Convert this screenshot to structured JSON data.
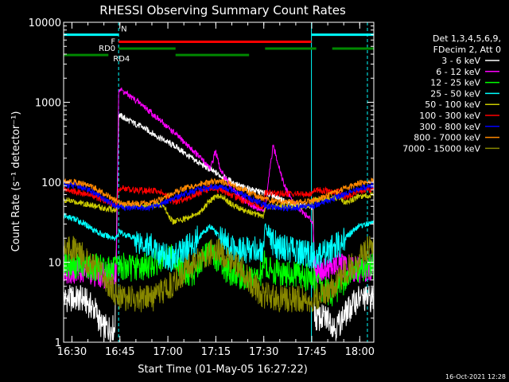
{
  "chart_data": {
    "type": "line",
    "title": "RHESSI Observing Summary Count Rates",
    "xlabel": "Start Time (01-May-05 16:27:22)",
    "ylabel": "Count Rate (s⁻¹ detector⁻¹)",
    "y_log": true,
    "ylim": [
      1,
      10000
    ],
    "xlim_minutes_after_start": [
      0,
      97
    ],
    "x_ticks": [
      {
        "label": "16:30",
        "t": 2.6
      },
      {
        "label": "16:45",
        "t": 17.6
      },
      {
        "label": "17:00",
        "t": 32.6
      },
      {
        "label": "17:15",
        "t": 47.6
      },
      {
        "label": "17:30",
        "t": 62.6
      },
      {
        "label": "17:45",
        "t": 77.6
      },
      {
        "label": "18:00",
        "t": 92.6
      }
    ],
    "y_ticks": [
      {
        "label": "1",
        "v": 1
      },
      {
        "label": "10",
        "v": 10
      },
      {
        "label": "100",
        "v": 100
      },
      {
        "label": "1000",
        "v": 1000
      },
      {
        "label": "10000",
        "v": 10000
      }
    ],
    "legend_header": [
      "Det 1,3,4,5,6,9,",
      "FDecim 2, Att 0"
    ],
    "legend_position": "right",
    "timestamp": "16-Oct-2021 12:28",
    "series": [
      {
        "name": "3 - 6 keV",
        "color": "#ffffff",
        "points": [
          [
            0,
            3.5
          ],
          [
            6,
            3.5
          ],
          [
            10,
            2.5
          ],
          [
            12,
            1.5
          ],
          [
            16,
            1.5
          ],
          [
            17.2,
            700
          ],
          [
            20,
            600
          ],
          [
            25,
            480
          ],
          [
            30,
            360
          ],
          [
            35,
            280
          ],
          [
            40,
            200
          ],
          [
            45,
            150
          ],
          [
            50,
            115
          ],
          [
            55,
            90
          ],
          [
            60,
            78
          ],
          [
            65,
            70
          ],
          [
            70,
            55
          ],
          [
            75,
            50
          ],
          [
            78,
            48
          ],
          [
            78.5,
            2
          ],
          [
            83,
            2
          ],
          [
            85,
            1.5
          ],
          [
            89,
            2.5
          ],
          [
            92,
            3.5
          ],
          [
            97,
            3.5
          ]
        ]
      },
      {
        "name": "6 - 12 keV",
        "color": "#ff00ff",
        "points": [
          [
            0,
            8
          ],
          [
            6,
            8
          ],
          [
            12,
            7
          ],
          [
            16.5,
            7
          ],
          [
            17.2,
            1500
          ],
          [
            20,
            1250
          ],
          [
            25,
            900
          ],
          [
            30,
            600
          ],
          [
            35,
            400
          ],
          [
            40,
            260
          ],
          [
            44,
            180
          ],
          [
            46,
            150
          ],
          [
            47.5,
            250
          ],
          [
            49,
            140
          ],
          [
            52,
            90
          ],
          [
            55,
            65
          ],
          [
            60,
            48
          ],
          [
            63,
            45
          ],
          [
            64,
            100
          ],
          [
            65.5,
            280
          ],
          [
            67,
            180
          ],
          [
            69,
            90
          ],
          [
            72,
            55
          ],
          [
            76,
            38
          ],
          [
            78,
            32
          ],
          [
            78.5,
            8
          ],
          [
            85,
            9
          ],
          [
            92,
            8
          ],
          [
            97,
            9
          ]
        ]
      },
      {
        "name": "12 - 25 keV",
        "color": "#00ff00",
        "points": [
          [
            0,
            9.5
          ],
          [
            6,
            9
          ],
          [
            12,
            8.5
          ],
          [
            16.5,
            8
          ],
          [
            17.2,
            9
          ],
          [
            22,
            8.5
          ],
          [
            26,
            9
          ],
          [
            30,
            10
          ],
          [
            34,
            12
          ],
          [
            37,
            8
          ],
          [
            40,
            7
          ],
          [
            43,
            10
          ],
          [
            45,
            14
          ],
          [
            47,
            12
          ],
          [
            50,
            8
          ],
          [
            54,
            7
          ],
          [
            58,
            6
          ],
          [
            62,
            7
          ],
          [
            62.5,
            12
          ],
          [
            63,
            9
          ],
          [
            65,
            8
          ],
          [
            69,
            7
          ],
          [
            74,
            7
          ],
          [
            78,
            6
          ],
          [
            80,
            5
          ],
          [
            84,
            4
          ],
          [
            88,
            6
          ],
          [
            92,
            8
          ],
          [
            97,
            9
          ]
        ]
      },
      {
        "name": "25 - 50 keV",
        "color": "#00ffff",
        "points": [
          [
            0,
            38
          ],
          [
            4,
            34
          ],
          [
            8,
            28
          ],
          [
            12,
            22
          ],
          [
            16.5,
            20
          ],
          [
            17.2,
            24
          ],
          [
            22,
            20
          ],
          [
            26,
            17
          ],
          [
            30,
            13
          ],
          [
            34,
            11
          ],
          [
            37,
            14
          ],
          [
            40,
            16
          ],
          [
            43,
            22
          ],
          [
            46,
            28
          ],
          [
            49,
            20
          ],
          [
            52,
            16
          ],
          [
            56,
            14
          ],
          [
            60,
            15
          ],
          [
            62.5,
            12
          ],
          [
            63,
            30
          ],
          [
            64,
            20
          ],
          [
            67,
            16
          ],
          [
            72,
            14
          ],
          [
            78,
            12
          ],
          [
            81,
            13
          ],
          [
            85,
            15
          ],
          [
            88,
            20
          ],
          [
            92,
            28
          ],
          [
            97,
            32
          ]
        ]
      },
      {
        "name": "50 - 100 keV",
        "color": "#cccc00",
        "points": [
          [
            0,
            60
          ],
          [
            6,
            55
          ],
          [
            12,
            48
          ],
          [
            16.5,
            45
          ],
          [
            17.2,
            52
          ],
          [
            22,
            52
          ],
          [
            26,
            52
          ],
          [
            30,
            52
          ],
          [
            32,
            45
          ],
          [
            34,
            32
          ],
          [
            38,
            35
          ],
          [
            42,
            40
          ],
          [
            46,
            60
          ],
          [
            49,
            70
          ],
          [
            52,
            55
          ],
          [
            56,
            45
          ],
          [
            60,
            40
          ],
          [
            62.5,
            38
          ],
          [
            63,
            50
          ],
          [
            67,
            50
          ],
          [
            72,
            50
          ],
          [
            77,
            50
          ],
          [
            78.5,
            60
          ],
          [
            82,
            62
          ],
          [
            86,
            65
          ],
          [
            88,
            55
          ],
          [
            90,
            60
          ],
          [
            92,
            66
          ],
          [
            97,
            70
          ]
        ]
      },
      {
        "name": "100 - 300 keV",
        "color": "#ff0000",
        "points": [
          [
            0,
            82
          ],
          [
            4,
            76
          ],
          [
            8,
            70
          ],
          [
            12,
            60
          ],
          [
            16.5,
            50
          ],
          [
            17.2,
            85
          ],
          [
            22,
            80
          ],
          [
            26,
            78
          ],
          [
            30,
            78
          ],
          [
            32,
            68
          ],
          [
            34,
            56
          ],
          [
            38,
            62
          ],
          [
            42,
            72
          ],
          [
            46,
            84
          ],
          [
            49,
            80
          ],
          [
            52,
            70
          ],
          [
            56,
            60
          ],
          [
            60,
            52
          ],
          [
            62.5,
            50
          ],
          [
            63,
            74
          ],
          [
            67,
            72
          ],
          [
            72,
            72
          ],
          [
            77,
            70
          ],
          [
            78.5,
            80
          ],
          [
            82,
            78
          ],
          [
            86,
            76
          ],
          [
            88,
            64
          ],
          [
            90,
            70
          ],
          [
            92,
            78
          ],
          [
            97,
            82
          ]
        ]
      },
      {
        "name": "300 - 800 keV",
        "color": "#0000ff",
        "points": [
          [
            0,
            95
          ],
          [
            4,
            90
          ],
          [
            8,
            80
          ],
          [
            12,
            65
          ],
          [
            16.5,
            50
          ],
          [
            20,
            48
          ],
          [
            26,
            48
          ],
          [
            30,
            52
          ],
          [
            34,
            62
          ],
          [
            38,
            72
          ],
          [
            42,
            80
          ],
          [
            46,
            86
          ],
          [
            49,
            88
          ],
          [
            52,
            82
          ],
          [
            56,
            70
          ],
          [
            60,
            58
          ],
          [
            64,
            50
          ],
          [
            68,
            48
          ],
          [
            72,
            48
          ],
          [
            77,
            50
          ],
          [
            80,
            54
          ],
          [
            84,
            62
          ],
          [
            88,
            72
          ],
          [
            92,
            84
          ],
          [
            97,
            92
          ]
        ]
      },
      {
        "name": "800 - 7000 keV",
        "color": "#ff8800",
        "points": [
          [
            0,
            105
          ],
          [
            4,
            100
          ],
          [
            8,
            92
          ],
          [
            12,
            75
          ],
          [
            16.5,
            58
          ],
          [
            20,
            54
          ],
          [
            26,
            54
          ],
          [
            30,
            60
          ],
          [
            34,
            72
          ],
          [
            38,
            84
          ],
          [
            42,
            92
          ],
          [
            46,
            100
          ],
          [
            49,
            102
          ],
          [
            52,
            95
          ],
          [
            56,
            82
          ],
          [
            60,
            68
          ],
          [
            64,
            60
          ],
          [
            68,
            56
          ],
          [
            72,
            56
          ],
          [
            77,
            58
          ],
          [
            80,
            62
          ],
          [
            84,
            72
          ],
          [
            88,
            84
          ],
          [
            92,
            96
          ],
          [
            97,
            105
          ]
        ]
      },
      {
        "name": "7000 - 15000 keV",
        "color": "#888800",
        "points": [
          [
            0,
            16
          ],
          [
            4,
            14
          ],
          [
            8,
            10
          ],
          [
            12,
            7
          ],
          [
            16.5,
            4
          ],
          [
            20,
            3.5
          ],
          [
            24,
            3.5
          ],
          [
            28,
            3.5
          ],
          [
            30,
            4
          ],
          [
            33,
            5
          ],
          [
            37,
            7
          ],
          [
            41,
            10
          ],
          [
            45,
            13
          ],
          [
            48,
            14
          ],
          [
            51,
            12
          ],
          [
            55,
            9
          ],
          [
            58,
            6
          ],
          [
            62,
            4
          ],
          [
            66,
            3.5
          ],
          [
            70,
            3.5
          ],
          [
            75,
            3.5
          ],
          [
            78,
            3.5
          ],
          [
            82,
            4
          ],
          [
            86,
            6
          ],
          [
            90,
            9
          ],
          [
            94,
            13
          ],
          [
            97,
            16
          ]
        ]
      }
    ],
    "state_bars": [
      {
        "label": "N",
        "color": "#00ffff",
        "level": 7000,
        "segments": [
          [
            0,
            17.2
          ],
          [
            77.5,
            97
          ]
        ]
      },
      {
        "label": "F",
        "color": "#ff0000",
        "level": 5700,
        "segments": [
          [
            17.2,
            77.5
          ]
        ]
      },
      {
        "label": "RD0",
        "color": "#008800",
        "level": 4700,
        "segments": [
          [
            17.2,
            35
          ],
          [
            63,
            79
          ],
          [
            84,
            97
          ]
        ]
      },
      {
        "label": "RD4",
        "color": "#008800",
        "level": 3900,
        "segments": [
          [
            0,
            14
          ],
          [
            35,
            58
          ]
        ]
      }
    ],
    "saa_times": [
      0,
      17.2,
      77.5,
      95
    ]
  }
}
